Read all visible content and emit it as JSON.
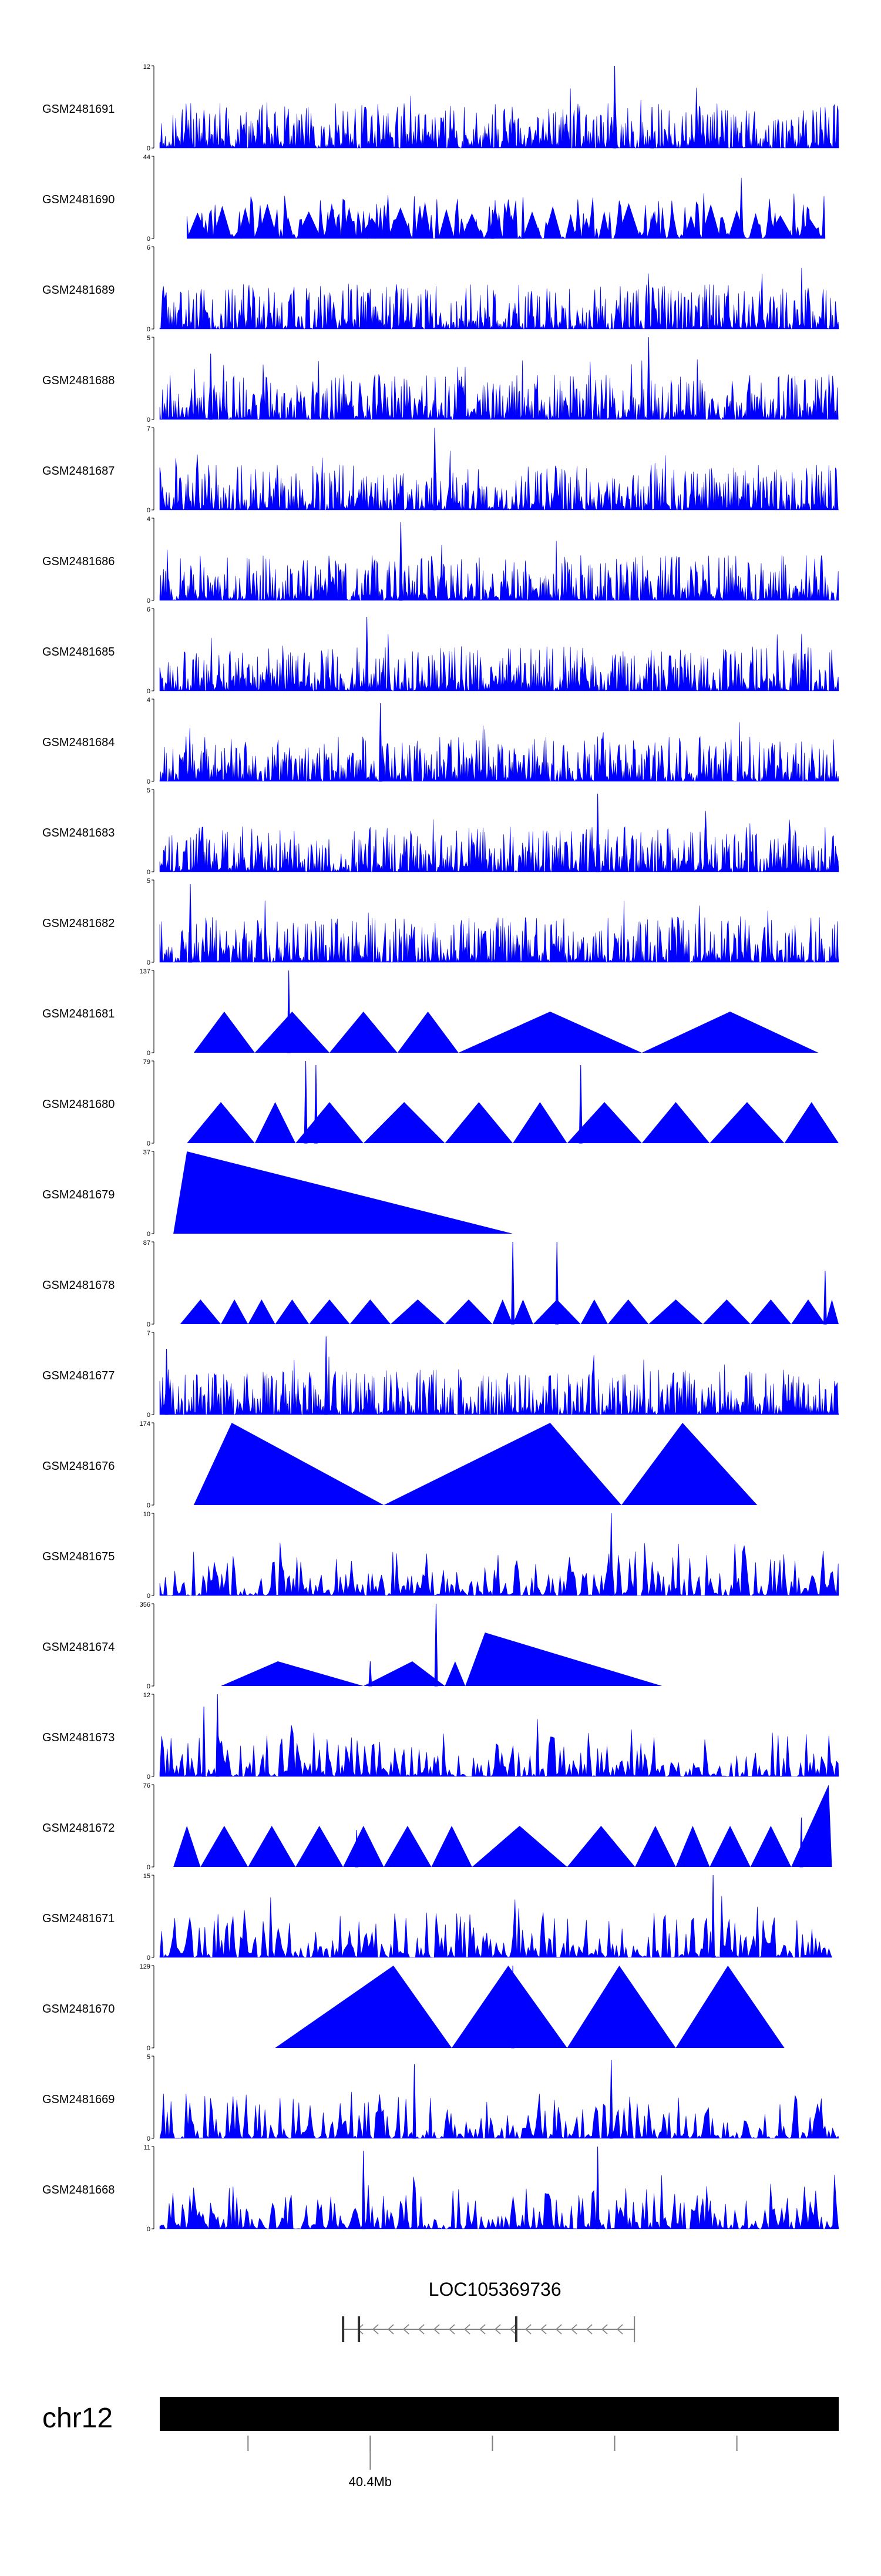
{
  "chart_data": {
    "type": "area",
    "track_color": "#0000ff",
    "tracks": [
      {
        "label": "GSM2481691",
        "ymax": "12",
        "ymin": "0",
        "style": "dense",
        "extent": [
          0.0,
          1.0
        ],
        "peaks": [
          [
            0.67,
            1.0
          ],
          [
            0.725,
            0.5
          ]
        ]
      },
      {
        "label": "GSM2481690",
        "ymax": "44",
        "ymin": "0",
        "style": "sparse",
        "extent": [
          0.04,
          0.98
        ],
        "peaks": [
          [
            0.535,
            0.5
          ],
          [
            0.49,
            0.35
          ]
        ]
      },
      {
        "label": "GSM2481689",
        "ymax": "6",
        "ymin": "0",
        "style": "dense",
        "extent": [
          0.0,
          1.0
        ],
        "peaks": []
      },
      {
        "label": "GSM2481688",
        "ymax": "5",
        "ymin": "0",
        "style": "dense",
        "extent": [
          0.0,
          1.0
        ],
        "peaks": [
          [
            0.72,
            1.0
          ],
          [
            0.075,
            0.8
          ]
        ]
      },
      {
        "label": "GSM2481687",
        "ymax": "7",
        "ymin": "0",
        "style": "dense",
        "extent": [
          0.0,
          1.0
        ],
        "peaks": [
          [
            0.405,
            1.0
          ]
        ]
      },
      {
        "label": "GSM2481686",
        "ymax": "4",
        "ymin": "0",
        "style": "dense",
        "extent": [
          0.0,
          1.0
        ],
        "peaks": [
          [
            0.355,
            0.95
          ]
        ]
      },
      {
        "label": "GSM2481685",
        "ymax": "6",
        "ymin": "0",
        "style": "dense",
        "extent": [
          0.0,
          1.0
        ],
        "peaks": [
          [
            0.305,
            0.9
          ]
        ]
      },
      {
        "label": "GSM2481684",
        "ymax": "4",
        "ymin": "0",
        "style": "dense",
        "extent": [
          0.0,
          1.0
        ],
        "peaks": [
          [
            0.325,
            0.95
          ]
        ]
      },
      {
        "label": "GSM2481683",
        "ymax": "5",
        "ymin": "0",
        "style": "dense",
        "extent": [
          0.0,
          1.0
        ],
        "peaks": [
          [
            0.645,
            0.95
          ]
        ]
      },
      {
        "label": "GSM2481682",
        "ymax": "5",
        "ymin": "0",
        "style": "dense",
        "extent": [
          0.0,
          1.0
        ],
        "peaks": [
          [
            0.045,
            0.95
          ]
        ]
      },
      {
        "label": "GSM2481681",
        "ymax": "137",
        "ymin": "0",
        "style": "triangles",
        "extent": [
          0.04,
          0.97
        ],
        "peaks": [
          [
            0.19,
            1.0
          ]
        ],
        "segments": [
          [
            0.05,
            0.14,
            0.5
          ],
          [
            0.14,
            0.25,
            0.5
          ],
          [
            0.25,
            0.35,
            0.5
          ],
          [
            0.35,
            0.44,
            0.5
          ],
          [
            0.44,
            0.71,
            0.5
          ],
          [
            0.71,
            0.97,
            0.5
          ]
        ]
      },
      {
        "label": "GSM2481680",
        "ymax": "79",
        "ymin": "0",
        "style": "triangles",
        "extent": [
          0.04,
          1.0
        ],
        "peaks": [
          [
            0.215,
            1.0
          ],
          [
            0.23,
            0.95
          ],
          [
            0.62,
            0.95
          ]
        ],
        "segments": [
          [
            0.04,
            0.14,
            0.5
          ],
          [
            0.14,
            0.2,
            0.5
          ],
          [
            0.2,
            0.3,
            0.5
          ],
          [
            0.3,
            0.42,
            0.5
          ],
          [
            0.42,
            0.52,
            0.5
          ],
          [
            0.52,
            0.6,
            0.5
          ],
          [
            0.6,
            0.71,
            0.5
          ],
          [
            0.71,
            0.81,
            0.5
          ],
          [
            0.81,
            0.92,
            0.5
          ],
          [
            0.92,
            1.0,
            0.5
          ]
        ]
      },
      {
        "label": "GSM2481679",
        "ymax": "37",
        "ymin": "0",
        "style": "triangles",
        "extent": [
          0.02,
          0.52
        ],
        "peaks": [],
        "segments": [
          [
            0.02,
            0.52,
            1.0,
            0.04
          ]
        ]
      },
      {
        "label": "GSM2481678",
        "ymax": "87",
        "ymin": "0",
        "style": "triangles",
        "extent": [
          0.03,
          1.0
        ],
        "peaks": [
          [
            0.52,
            1.0
          ],
          [
            0.585,
            1.0
          ],
          [
            0.98,
            0.65
          ]
        ],
        "segments": [
          [
            0.03,
            0.09,
            0.3
          ],
          [
            0.09,
            0.13,
            0.3
          ],
          [
            0.13,
            0.17,
            0.3
          ],
          [
            0.17,
            0.22,
            0.3
          ],
          [
            0.22,
            0.28,
            0.3
          ],
          [
            0.28,
            0.34,
            0.3
          ],
          [
            0.34,
            0.42,
            0.3
          ],
          [
            0.42,
            0.49,
            0.3
          ],
          [
            0.49,
            0.52,
            0.3
          ],
          [
            0.52,
            0.55,
            0.3
          ],
          [
            0.55,
            0.62,
            0.3
          ],
          [
            0.62,
            0.66,
            0.3
          ],
          [
            0.66,
            0.72,
            0.3
          ],
          [
            0.72,
            0.8,
            0.3
          ],
          [
            0.8,
            0.87,
            0.3
          ],
          [
            0.87,
            0.93,
            0.3
          ],
          [
            0.93,
            0.98,
            0.3
          ],
          [
            0.98,
            1.0,
            0.3
          ]
        ]
      },
      {
        "label": "GSM2481677",
        "ymax": "7",
        "ymin": "0",
        "style": "dense",
        "extent": [
          0.0,
          1.0
        ],
        "peaks": [
          [
            0.245,
            0.95
          ],
          [
            0.01,
            0.8
          ]
        ]
      },
      {
        "label": "GSM2481676",
        "ymax": "174",
        "ymin": "0",
        "style": "triangles",
        "extent": [
          0.05,
          0.88
        ],
        "peaks": [],
        "segments": [
          [
            0.05,
            0.33,
            1.0,
            0.2
          ],
          [
            0.33,
            0.68,
            1.0,
            0.7
          ],
          [
            0.68,
            0.88,
            1.0,
            0.45
          ]
        ]
      },
      {
        "label": "GSM2481675",
        "ymax": "10",
        "ymin": "0",
        "style": "sparse",
        "extent": [
          0.0,
          1.0
        ],
        "peaks": [
          [
            0.665,
            1.0
          ]
        ]
      },
      {
        "label": "GSM2481674",
        "ymax": "356",
        "ymin": "0",
        "style": "triangles",
        "extent": [
          0.09,
          0.74
        ],
        "peaks": [
          [
            0.407,
            1.0
          ],
          [
            0.31,
            0.3
          ]
        ],
        "segments": [
          [
            0.09,
            0.3,
            0.3,
            0.4
          ],
          [
            0.3,
            0.42,
            0.3,
            0.6
          ],
          [
            0.42,
            0.45,
            0.3,
            0.5
          ],
          [
            0.45,
            0.74,
            0.65,
            0.1
          ]
        ]
      },
      {
        "label": "GSM2481673",
        "ymax": "12",
        "ymin": "0",
        "style": "sparse",
        "extent": [
          0.0,
          1.0
        ],
        "peaks": [
          [
            0.085,
            1.0
          ],
          [
            0.065,
            0.85
          ]
        ]
      },
      {
        "label": "GSM2481672",
        "ymax": "76",
        "ymin": "0",
        "style": "triangles",
        "extent": [
          0.02,
          0.99
        ],
        "peaks": [
          [
            0.29,
            0.45
          ],
          [
            0.945,
            0.6
          ]
        ],
        "segments": [
          [
            0.02,
            0.06,
            0.5
          ],
          [
            0.06,
            0.13,
            0.5
          ],
          [
            0.13,
            0.2,
            0.5
          ],
          [
            0.2,
            0.27,
            0.5
          ],
          [
            0.27,
            0.33,
            0.5
          ],
          [
            0.33,
            0.4,
            0.5
          ],
          [
            0.4,
            0.46,
            0.5
          ],
          [
            0.46,
            0.6,
            0.5
          ],
          [
            0.6,
            0.7,
            0.5
          ],
          [
            0.7,
            0.76,
            0.5
          ],
          [
            0.76,
            0.81,
            0.5
          ],
          [
            0.81,
            0.87,
            0.5
          ],
          [
            0.87,
            0.93,
            0.5
          ],
          [
            0.93,
            0.99,
            1.0,
            0.92
          ]
        ]
      },
      {
        "label": "GSM2481671",
        "ymax": "15",
        "ymin": "0",
        "style": "sparse",
        "extent": [
          0.0,
          0.99
        ],
        "peaks": [
          [
            0.815,
            1.0
          ]
        ]
      },
      {
        "label": "GSM2481670",
        "ymax": "129",
        "ymin": "0",
        "style": "triangles",
        "extent": [
          0.17,
          0.92
        ],
        "peaks": [
          [
            0.52,
            1.0
          ]
        ],
        "segments": [
          [
            0.17,
            0.43,
            1.0,
            0.67
          ],
          [
            0.43,
            0.6,
            1.0,
            0.49
          ],
          [
            0.6,
            0.76,
            1.0,
            0.48
          ],
          [
            0.76,
            0.92,
            1.0,
            0.48
          ]
        ]
      },
      {
        "label": "GSM2481669",
        "ymax": "5",
        "ymin": "0",
        "style": "sparse",
        "extent": [
          0.0,
          1.0
        ],
        "peaks": [
          [
            0.665,
            0.95
          ],
          [
            0.375,
            0.9
          ]
        ]
      },
      {
        "label": "GSM2481668",
        "ymax": "11",
        "ymin": "0",
        "style": "sparse",
        "extent": [
          0.0,
          1.0
        ],
        "peaks": [
          [
            0.645,
            1.0
          ],
          [
            0.3,
            0.95
          ]
        ]
      }
    ],
    "gene": {
      "name": "LOC105369736",
      "strand": "-",
      "start_frac": 0.27,
      "end_frac": 0.7
    },
    "ideogram": {
      "chromosome": "chr12",
      "tick_label": "40.4Mb",
      "tick_label_frac": 0.31,
      "tick_fracs": [
        0.13,
        0.31,
        0.49,
        0.67,
        0.85
      ]
    }
  }
}
